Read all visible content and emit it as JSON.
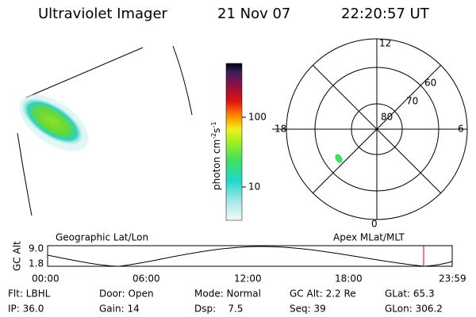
{
  "header": {
    "title": "Ultraviolet Imager",
    "date": "21 Nov 07",
    "time": "22:20:57 UT"
  },
  "colorbar": {
    "label": {
      "base": "photon cm",
      "exp1": "-2",
      "unit2": "s",
      "exp2": "-1"
    },
    "ticks": [
      "100",
      "10"
    ]
  },
  "polar": {
    "mlt_labels": {
      "top": "12",
      "left": "18",
      "right": "6",
      "bottom": "0"
    },
    "mlat_labels": [
      "80",
      "70",
      "60"
    ]
  },
  "timeline": {
    "left_label": "Geographic Lat/Lon",
    "right_label": "Apex MLat/MLT",
    "y_label": "GC Alt",
    "y_ticks": [
      "9.0",
      "1.8"
    ],
    "x_ticks": [
      "00:00",
      "06:00",
      "12:00",
      "18:00",
      "23:59"
    ]
  },
  "info": {
    "rows": [
      [
        "Flt: LBHL",
        "Door: Open",
        "Mode: Normal",
        "GC Alt: 2.2 Re",
        "GLat: 65.3"
      ],
      [
        "IP: 36.0",
        "Gain: 14",
        "Dsp:    7.5",
        "Seq: 39",
        "GLon: 306.2"
      ]
    ]
  }
}
